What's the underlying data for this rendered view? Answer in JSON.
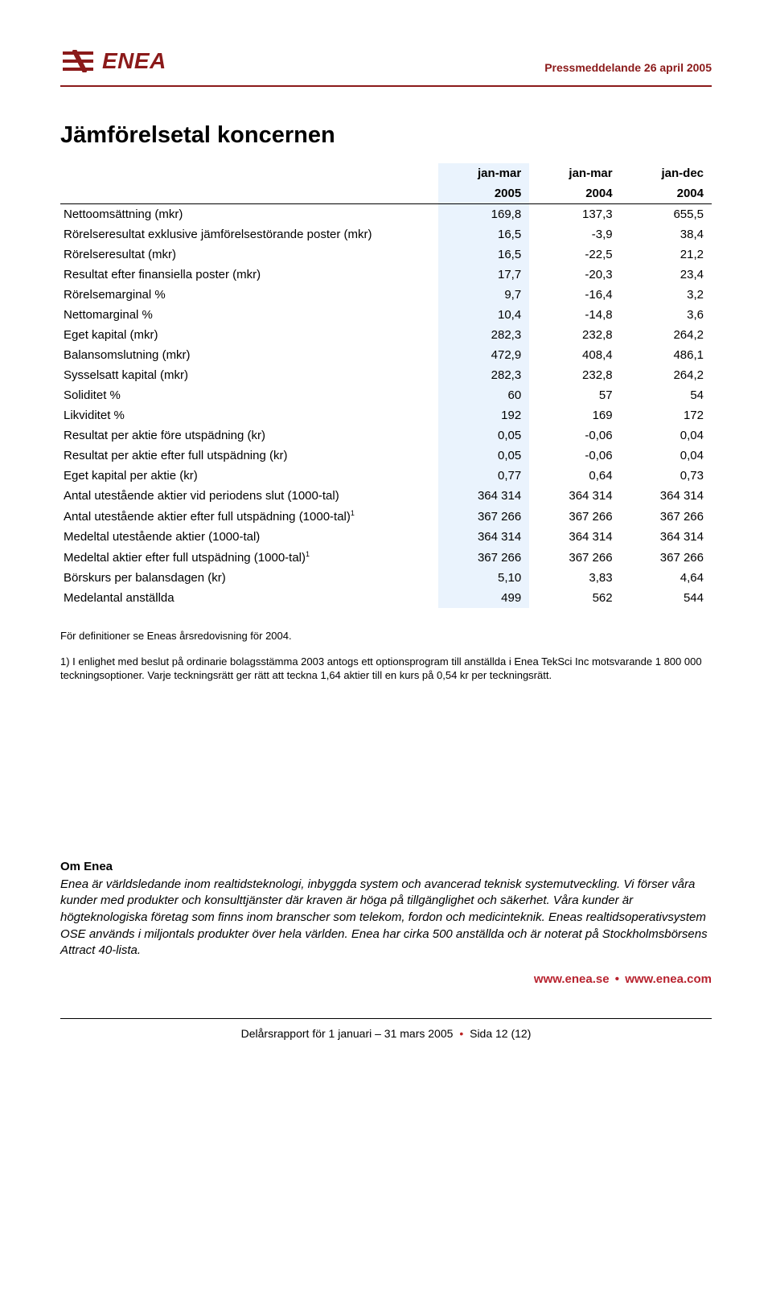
{
  "palette": {
    "brand": "#8b1a1a",
    "hl_col_bg": "#eaf3fd",
    "link_red": "#b8232f"
  },
  "header": {
    "logo_word": "ENEA",
    "press_line": "Pressmeddelande 26 april 2005"
  },
  "title": "Jämförelsetal koncernen",
  "table": {
    "period_headers": [
      "jan-mar",
      "jan-mar",
      "jan-dec"
    ],
    "year_headers": [
      "2005",
      "2004",
      "2004"
    ],
    "highlight_col_index": 0,
    "rows": [
      {
        "label": "Nettoomsättning (mkr)",
        "v": [
          "169,8",
          "137,3",
          "655,5"
        ]
      },
      {
        "label": "Rörelseresultat exklusive jämförelsestörande poster (mkr)",
        "v": [
          "16,5",
          "-3,9",
          "38,4"
        ]
      },
      {
        "label": "Rörelseresultat (mkr)",
        "v": [
          "16,5",
          "-22,5",
          "21,2"
        ]
      },
      {
        "label": "Resultat efter finansiella poster (mkr)",
        "v": [
          "17,7",
          "-20,3",
          "23,4"
        ]
      },
      {
        "label": "Rörelsemarginal %",
        "v": [
          "9,7",
          "-16,4",
          "3,2"
        ]
      },
      {
        "label": "Nettomarginal %",
        "v": [
          "10,4",
          "-14,8",
          "3,6"
        ]
      },
      {
        "label": "Eget kapital (mkr)",
        "v": [
          "282,3",
          "232,8",
          "264,2"
        ]
      },
      {
        "label": "Balansomslutning (mkr)",
        "v": [
          "472,9",
          "408,4",
          "486,1"
        ]
      },
      {
        "label": "Sysselsatt kapital (mkr)",
        "v": [
          "282,3",
          "232,8",
          "264,2"
        ]
      },
      {
        "label": "Soliditet %",
        "v": [
          "60",
          "57",
          "54"
        ]
      },
      {
        "label": "Likviditet %",
        "v": [
          "192",
          "169",
          "172"
        ]
      },
      {
        "label": "Resultat per aktie före utspädning (kr)",
        "v": [
          "0,05",
          "-0,06",
          "0,04"
        ]
      },
      {
        "label": "Resultat per aktie efter full utspädning (kr)",
        "v": [
          "0,05",
          "-0,06",
          "0,04"
        ]
      },
      {
        "label": "Eget kapital per aktie (kr)",
        "v": [
          "0,77",
          "0,64",
          "0,73"
        ]
      },
      {
        "label": "Antal utestående aktier vid periodens slut (1000-tal)",
        "v": [
          "364 314",
          "364 314",
          "364 314"
        ]
      },
      {
        "label": "Antal utestående aktier efter full utspädning (1000-tal)",
        "sup": "1",
        "v": [
          "367 266",
          "367 266",
          "367 266"
        ]
      },
      {
        "label": "Medeltal utestående aktier (1000-tal)",
        "v": [
          "364 314",
          "364 314",
          "364 314"
        ]
      },
      {
        "label": "Medeltal aktier efter full utspädning (1000-tal)",
        "sup": "1",
        "v": [
          "367 266",
          "367 266",
          "367 266"
        ]
      },
      {
        "label": "Börskurs per balansdagen (kr)",
        "v": [
          "5,10",
          "3,83",
          "4,64"
        ]
      },
      {
        "label": "Medelantal anställda",
        "v": [
          "499",
          "562",
          "544"
        ]
      }
    ]
  },
  "notes": [
    "För definitioner se Eneas årsredovisning för 2004.",
    "1) I enlighet med beslut på ordinarie bolagsstämma 2003 antogs ett optionsprogram till anställda i Enea TekSci Inc motsvarande 1 800 000 teckningsoptioner. Varje teckningsrätt ger rätt att teckna 1,64 aktier till en kurs på 0,54 kr per teckningsrätt."
  ],
  "about": {
    "heading": "Om Enea",
    "body": "Enea är världsledande inom realtidsteknologi, inbyggda system och avancerad teknisk systemutveckling. Vi förser våra kunder med produkter och konsulttjänster där kraven är höga på tillgänglighet och säkerhet. Våra kunder är högteknologiska företag som finns inom branscher som telekom, fordon och medicinteknik. Eneas realtidsoperativsystem OSE används i miljontals produkter över hela världen. Enea har cirka 500 anställda och är noterat på Stockholmsbörsens Attract 40-lista.",
    "links": [
      "www.enea.se",
      "www.enea.com"
    ]
  },
  "footer": {
    "left": "Delårsrapport för 1 januari – 31 mars 2005",
    "right": "Sida 12 (12)"
  }
}
